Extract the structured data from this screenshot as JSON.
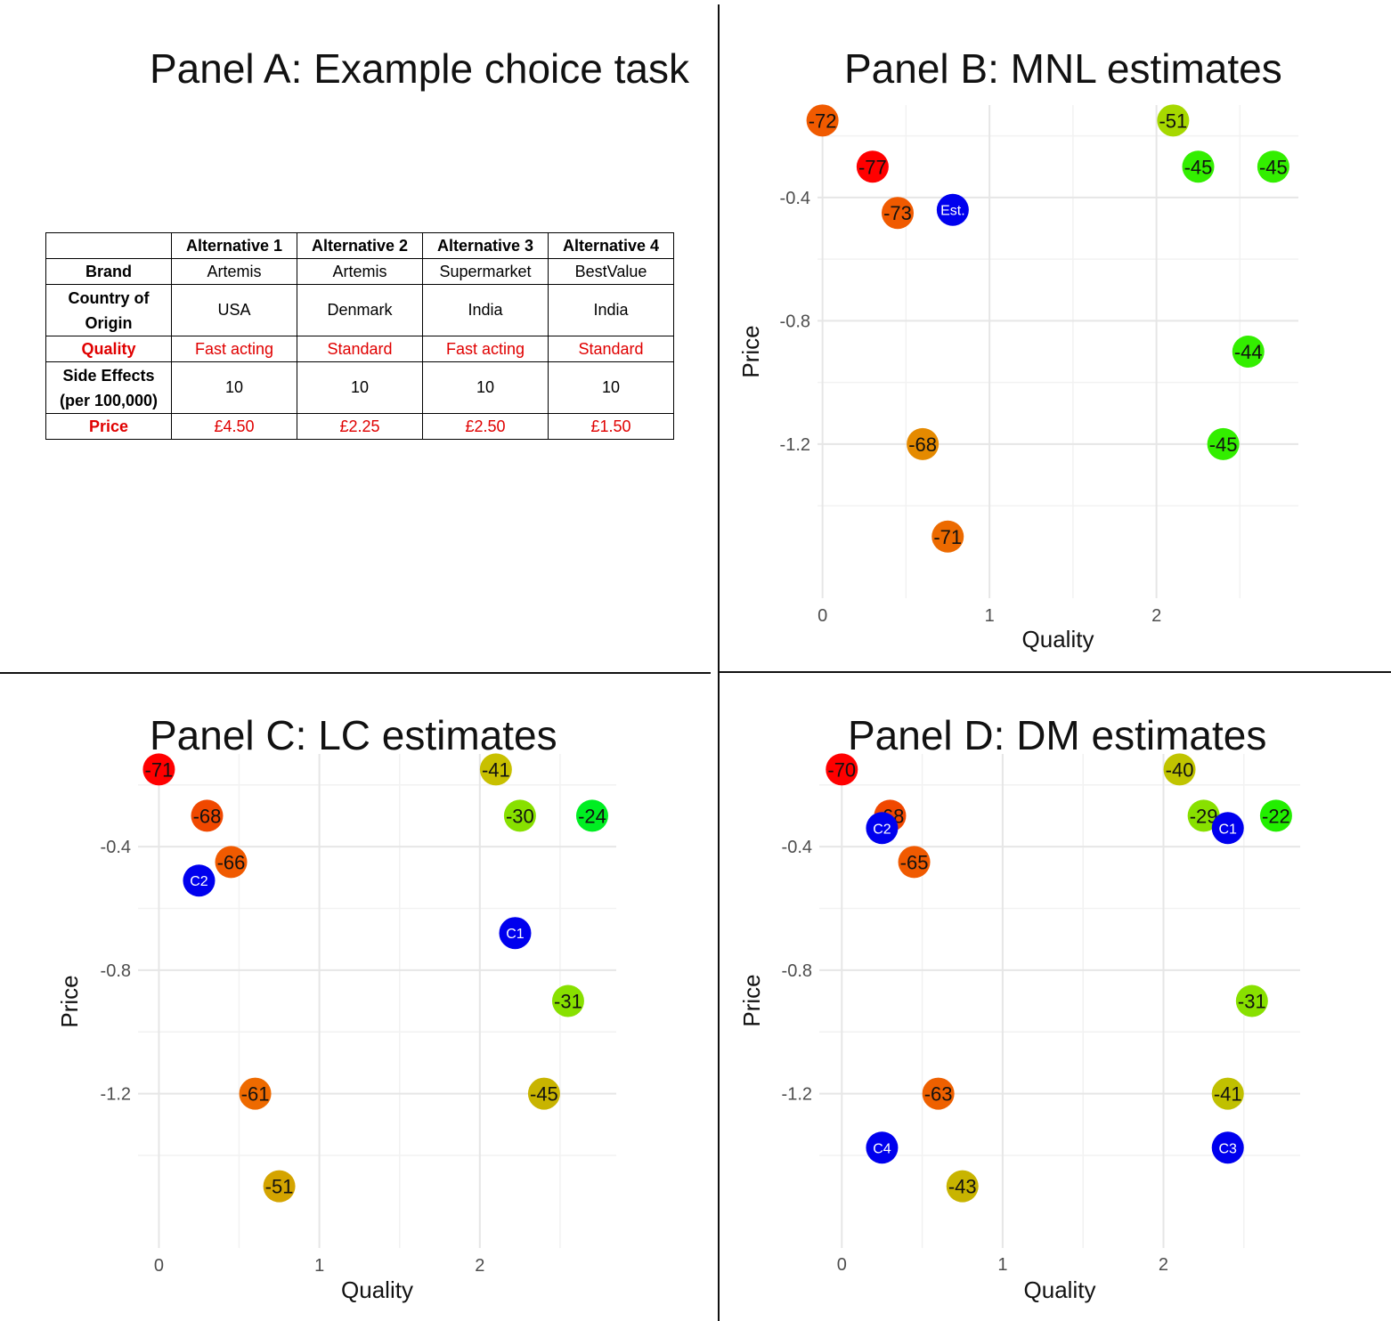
{
  "panel_a": {
    "title": "Panel A: Example choice task",
    "headers": [
      "",
      "Alternative 1",
      "Alternative 2",
      "Alternative 3",
      "Alternative 4"
    ],
    "rows": [
      {
        "label": "Brand",
        "cells": [
          "Artemis",
          "Artemis",
          "Supermarket",
          "BestValue"
        ],
        "highlight": false
      },
      {
        "label": "Country of Origin",
        "cells": [
          "USA",
          "Denmark",
          "India",
          "India"
        ],
        "highlight": false
      },
      {
        "label": "Quality",
        "cells": [
          "Fast acting",
          "Standard",
          "Fast acting",
          "Standard"
        ],
        "highlight": true
      },
      {
        "label": "Side Effects (per 100,000)",
        "cells": [
          "10",
          "10",
          "10",
          "10"
        ],
        "highlight": false
      },
      {
        "label": "Price",
        "cells": [
          "£4.50",
          "£2.25",
          "£2.50",
          "£1.50"
        ],
        "highlight": true
      }
    ],
    "highlight_color": "#e00000"
  },
  "chart_data": [
    {
      "id": "B",
      "type": "scatter",
      "title": "Panel B: MNL estimates",
      "xlabel": "Quality",
      "ylabel": "Price",
      "xlim": [
        -0.03,
        2.85
      ],
      "ylim": [
        -1.7,
        -0.1
      ],
      "xticks": [
        0,
        1,
        2
      ],
      "yticks": [
        -0.4,
        -0.8,
        -1.2
      ],
      "points": [
        {
          "x": 0.0,
          "y": -0.15,
          "label": "-72",
          "color": "#f05a00"
        },
        {
          "x": 0.3,
          "y": -0.3,
          "label": "-77",
          "color": "#ff0000"
        },
        {
          "x": 0.45,
          "y": -0.45,
          "label": "-73",
          "color": "#f05a00"
        },
        {
          "x": 0.6,
          "y": -1.2,
          "label": "-68",
          "color": "#e58a00"
        },
        {
          "x": 0.75,
          "y": -1.5,
          "label": "-71",
          "color": "#ec6a00"
        },
        {
          "x": 2.1,
          "y": -0.15,
          "label": "-51",
          "color": "#a6d800"
        },
        {
          "x": 2.25,
          "y": -0.3,
          "label": "-45",
          "color": "#33ee00"
        },
        {
          "x": 2.7,
          "y": -0.3,
          "label": "-45",
          "color": "#33ee00"
        },
        {
          "x": 2.55,
          "y": -0.9,
          "label": "-44",
          "color": "#33ee00"
        },
        {
          "x": 2.4,
          "y": -1.2,
          "label": "-45",
          "color": "#33ee00"
        }
      ],
      "estimates": [
        {
          "x": 0.78,
          "y": -0.44,
          "label": "Est."
        }
      ]
    },
    {
      "id": "C",
      "type": "scatter",
      "title": "Panel C: LC estimates",
      "xlabel": "Quality",
      "ylabel": "Price",
      "xlim": [
        -0.13,
        2.85
      ],
      "ylim": [
        -1.7,
        -0.1
      ],
      "xticks": [
        0,
        1,
        2
      ],
      "yticks": [
        -0.4,
        -0.8,
        -1.2
      ],
      "points": [
        {
          "x": 0.0,
          "y": -0.15,
          "label": "-71",
          "color": "#ff0000"
        },
        {
          "x": 0.3,
          "y": -0.3,
          "label": "-68",
          "color": "#f04800"
        },
        {
          "x": 0.45,
          "y": -0.45,
          "label": "-66",
          "color": "#f05a00"
        },
        {
          "x": 0.6,
          "y": -1.2,
          "label": "-61",
          "color": "#ee6a00"
        },
        {
          "x": 0.75,
          "y": -1.5,
          "label": "-51",
          "color": "#d4a400"
        },
        {
          "x": 2.1,
          "y": -0.15,
          "label": "-41",
          "color": "#c8c000"
        },
        {
          "x": 2.25,
          "y": -0.3,
          "label": "-30",
          "color": "#88e000"
        },
        {
          "x": 2.7,
          "y": -0.3,
          "label": "-24",
          "color": "#00ee22"
        },
        {
          "x": 2.55,
          "y": -0.9,
          "label": "-31",
          "color": "#88e000"
        },
        {
          "x": 2.4,
          "y": -1.2,
          "label": "-45",
          "color": "#c8b400"
        }
      ],
      "estimates": [
        {
          "x": 0.25,
          "y": -0.51,
          "label": "C2"
        },
        {
          "x": 2.22,
          "y": -0.68,
          "label": "C1"
        }
      ]
    },
    {
      "id": "D",
      "type": "scatter",
      "title": "Panel D: DM estimates",
      "xlabel": "Quality",
      "ylabel": "Price",
      "xlim": [
        -0.14,
        2.85
      ],
      "ylim": [
        -1.7,
        -0.1
      ],
      "xticks": [
        0,
        1,
        2
      ],
      "yticks": [
        -0.4,
        -0.8,
        -1.2
      ],
      "points": [
        {
          "x": 0.0,
          "y": -0.15,
          "label": "-70",
          "color": "#ff0000"
        },
        {
          "x": 0.3,
          "y": -0.3,
          "label": "-68",
          "color": "#f04800"
        },
        {
          "x": 0.45,
          "y": -0.45,
          "label": "-65",
          "color": "#f05a00"
        },
        {
          "x": 0.6,
          "y": -1.2,
          "label": "-63",
          "color": "#ee6000"
        },
        {
          "x": 0.75,
          "y": -1.5,
          "label": "-43",
          "color": "#c8b400"
        },
        {
          "x": 2.1,
          "y": -0.15,
          "label": "-40",
          "color": "#c0c400"
        },
        {
          "x": 2.25,
          "y": -0.3,
          "label": "-29",
          "color": "#88e000"
        },
        {
          "x": 2.7,
          "y": -0.3,
          "label": "-22",
          "color": "#22ee00"
        },
        {
          "x": 2.55,
          "y": -0.9,
          "label": "-31",
          "color": "#88e000"
        },
        {
          "x": 2.4,
          "y": -1.2,
          "label": "-41",
          "color": "#c0c000"
        }
      ],
      "estimates": [
        {
          "x": 0.25,
          "y": -0.34,
          "label": "C2"
        },
        {
          "x": 2.4,
          "y": -0.34,
          "label": "C1"
        },
        {
          "x": 0.25,
          "y": -1.375,
          "label": "C4"
        },
        {
          "x": 2.4,
          "y": -1.375,
          "label": "C3"
        }
      ]
    }
  ],
  "estimate_color": "#0000ee"
}
